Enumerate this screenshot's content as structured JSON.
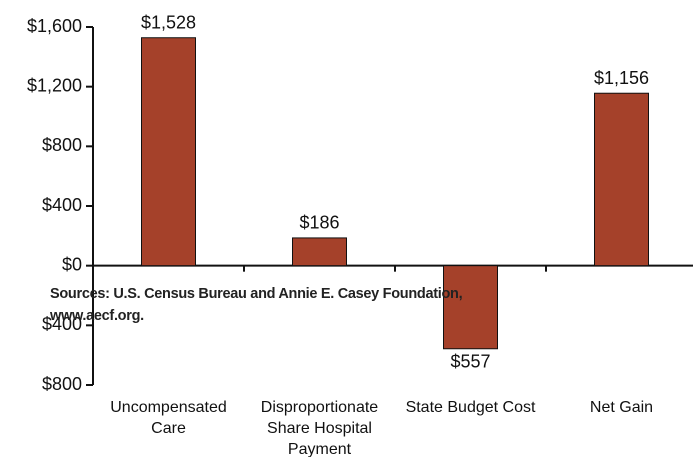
{
  "chart_data": {
    "type": "bar",
    "categories": [
      "Uncompensated Care",
      "Disproportionate Share Hospital Payment",
      "State Budget Cost",
      "Net Gain"
    ],
    "values": [
      1528,
      186,
      -557,
      1156
    ],
    "value_labels": [
      "$1,528",
      "$186",
      "$557",
      "$1,156"
    ],
    "color": "#a5412a",
    "ylim": [
      -800,
      1600
    ],
    "yticks": [
      {
        "value": 1600,
        "label": "$1,600"
      },
      {
        "value": 1200,
        "label": "$1,200"
      },
      {
        "value": 800,
        "label": "$800"
      },
      {
        "value": 400,
        "label": "$400"
      },
      {
        "value": 0,
        "label": "$0"
      },
      {
        "value": -400,
        "label": "$400"
      },
      {
        "value": -800,
        "label": "$800"
      }
    ],
    "annotation": "Sources: U.S. Census Bureau and Annie E. Casey Foundation, www.aecf.org."
  }
}
